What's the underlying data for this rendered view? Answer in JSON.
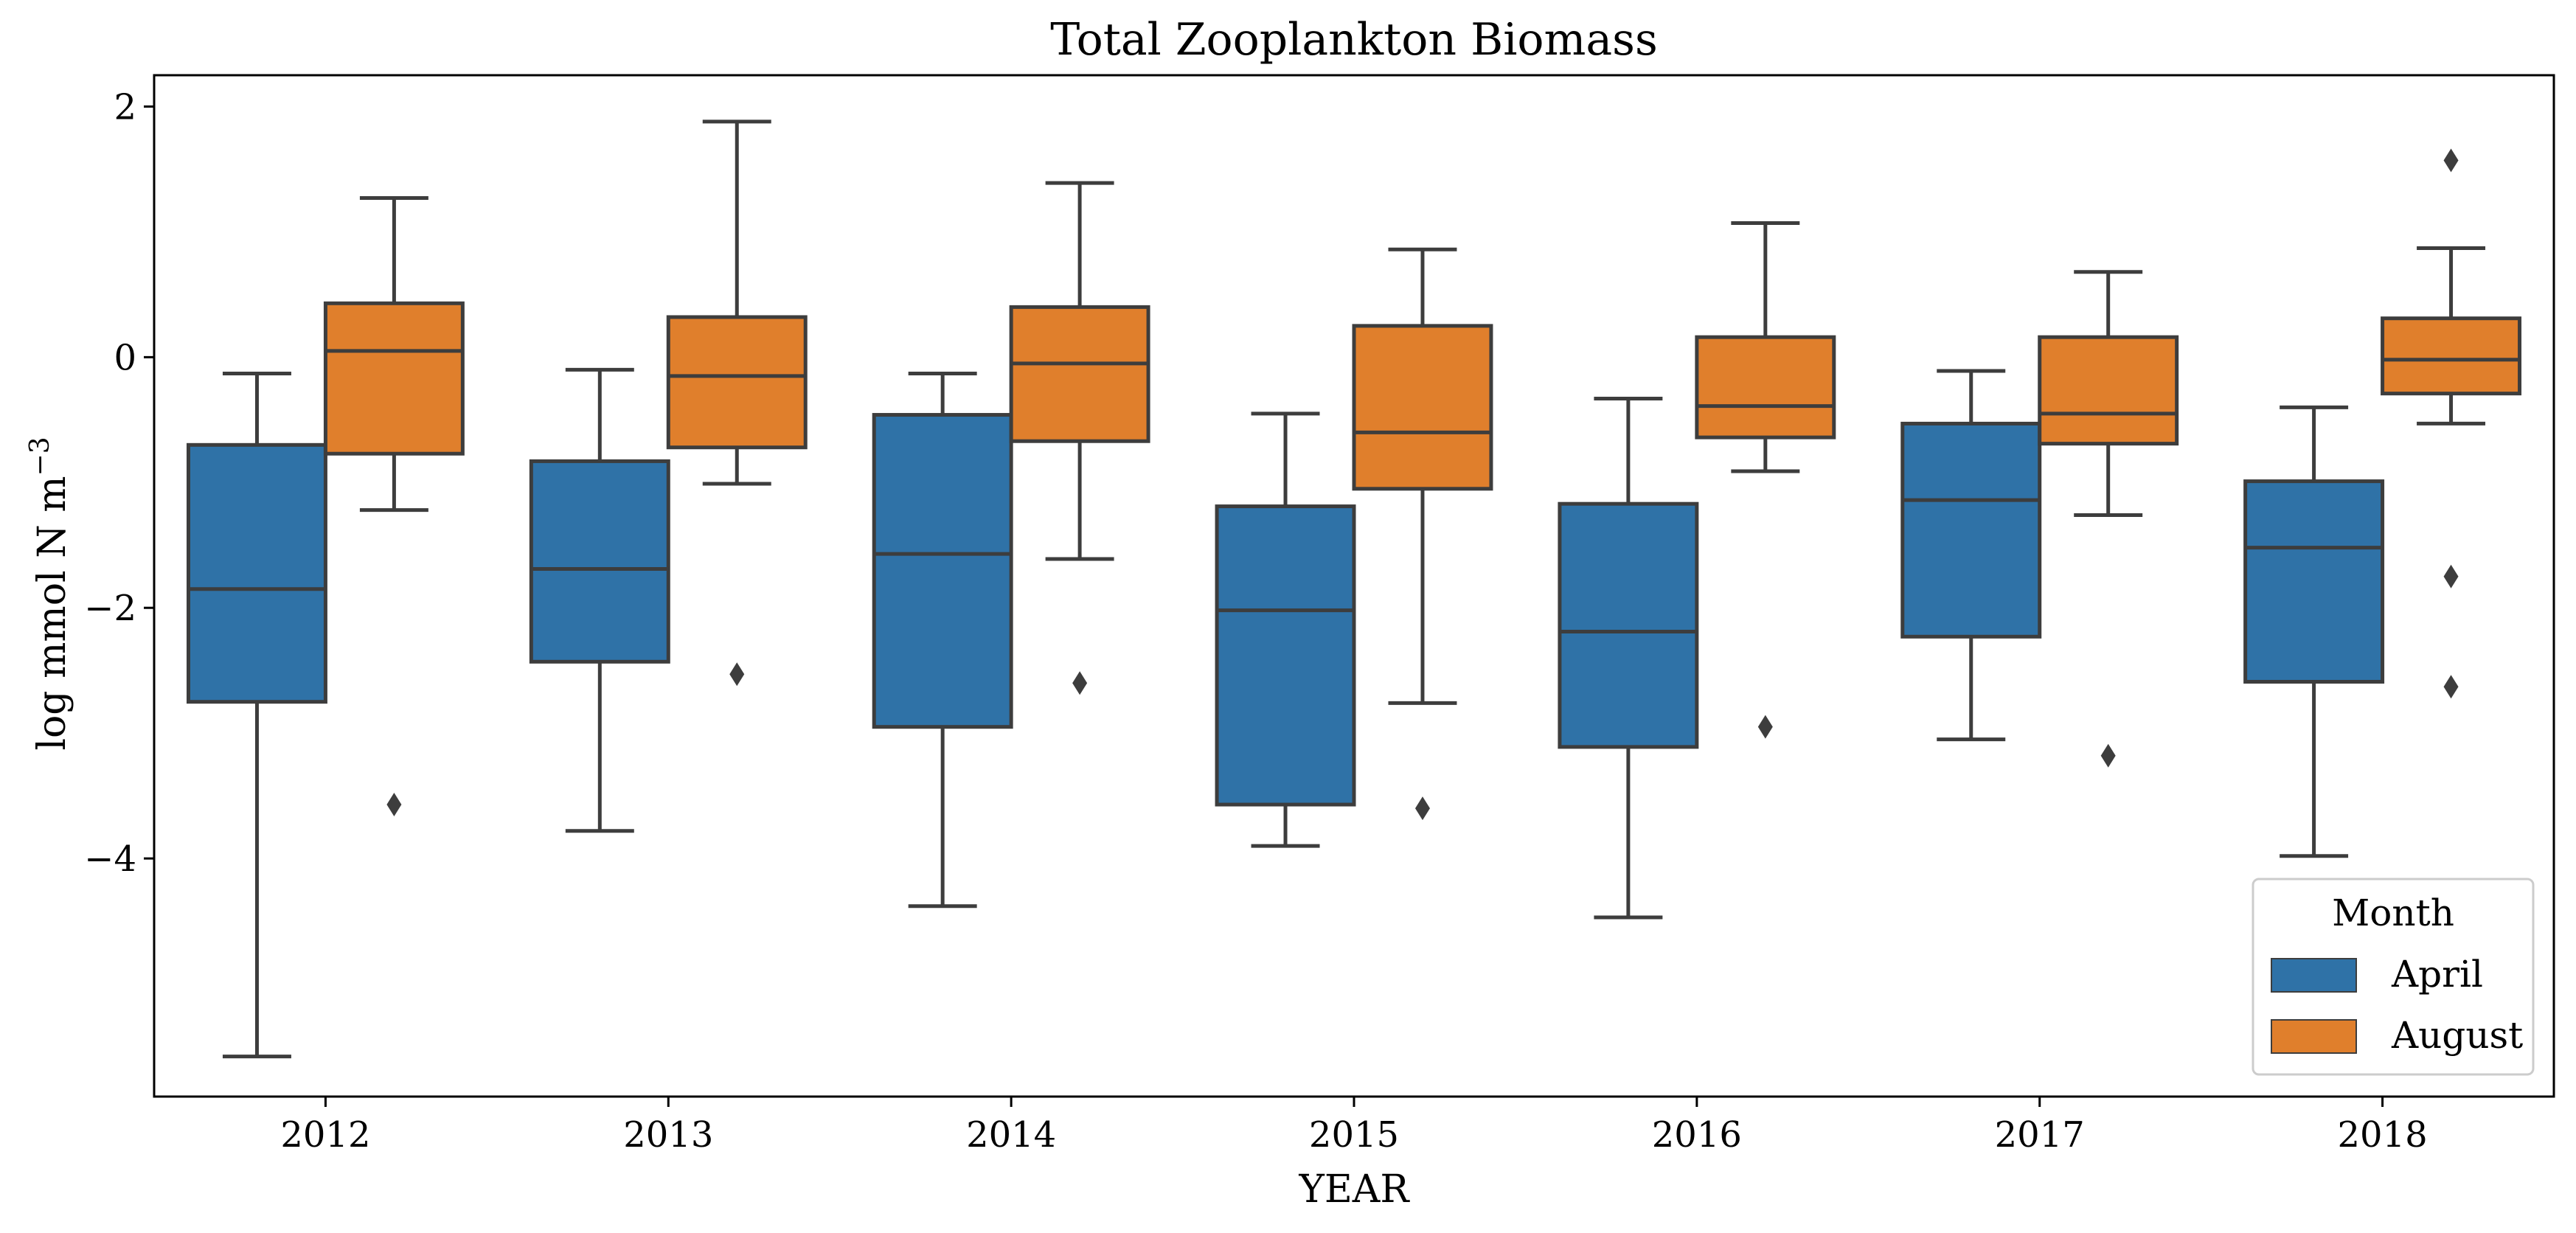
{
  "chart_data": {
    "type": "box",
    "title": "Total Zooplankton Biomass",
    "xlabel": "YEAR",
    "ylabel": "log mmol N m",
    "ylabel_superscript": "−3",
    "ylim": [
      -5.9,
      2.25
    ],
    "yticks": [
      {
        "value": 2,
        "label": "2"
      },
      {
        "value": 0,
        "label": "0"
      },
      {
        "value": -2,
        "label": "−2"
      },
      {
        "value": -4,
        "label": "−4"
      }
    ],
    "categories": [
      "2012",
      "2013",
      "2014",
      "2015",
      "2016",
      "2017",
      "2018"
    ],
    "legend": {
      "title": "Month",
      "position": "lower-right"
    },
    "grid": false,
    "series": [
      {
        "name": "April",
        "color": "#2f72a7",
        "boxes": [
          {
            "whislo": -5.58,
            "q1": -2.75,
            "med": -1.85,
            "q3": -0.7,
            "whishi": -0.13,
            "fliers": []
          },
          {
            "whislo": -3.78,
            "q1": -2.43,
            "med": -1.69,
            "q3": -0.83,
            "whishi": -0.1,
            "fliers": []
          },
          {
            "whislo": -4.38,
            "q1": -2.95,
            "med": -1.57,
            "q3": -0.46,
            "whishi": -0.13,
            "fliers": []
          },
          {
            "whislo": -3.9,
            "q1": -3.57,
            "med": -2.02,
            "q3": -1.19,
            "whishi": -0.45,
            "fliers": []
          },
          {
            "whislo": -4.47,
            "q1": -3.11,
            "med": -2.19,
            "q3": -1.17,
            "whishi": -0.33,
            "fliers": []
          },
          {
            "whislo": -3.05,
            "q1": -2.23,
            "med": -1.14,
            "q3": -0.53,
            "whishi": -0.11,
            "fliers": []
          },
          {
            "whislo": -3.98,
            "q1": -2.59,
            "med": -1.52,
            "q3": -0.99,
            "whishi": -0.4,
            "fliers": []
          }
        ]
      },
      {
        "name": "August",
        "color": "#e07f2c",
        "boxes": [
          {
            "whislo": -1.22,
            "q1": -0.77,
            "med": 0.05,
            "q3": 0.43,
            "whishi": 1.27,
            "fliers": [
              -3.57
            ]
          },
          {
            "whislo": -1.01,
            "q1": -0.72,
            "med": -0.15,
            "q3": 0.32,
            "whishi": 1.88,
            "fliers": [
              -2.53
            ]
          },
          {
            "whislo": -1.61,
            "q1": -0.67,
            "med": -0.05,
            "q3": 0.4,
            "whishi": 1.39,
            "fliers": [
              -2.6
            ]
          },
          {
            "whislo": -2.76,
            "q1": -1.05,
            "med": -0.6,
            "q3": 0.25,
            "whishi": 0.86,
            "fliers": [
              -3.6
            ]
          },
          {
            "whislo": -0.91,
            "q1": -0.64,
            "med": -0.39,
            "q3": 0.16,
            "whishi": 1.07,
            "fliers": [
              -2.95
            ]
          },
          {
            "whislo": -1.26,
            "q1": -0.69,
            "med": -0.45,
            "q3": 0.16,
            "whishi": 0.68,
            "fliers": [
              -3.18
            ]
          },
          {
            "whislo": -0.53,
            "q1": -0.29,
            "med": -0.02,
            "q3": 0.31,
            "whishi": 0.87,
            "fliers": [
              1.57,
              -1.75,
              -2.63
            ]
          }
        ]
      }
    ]
  }
}
